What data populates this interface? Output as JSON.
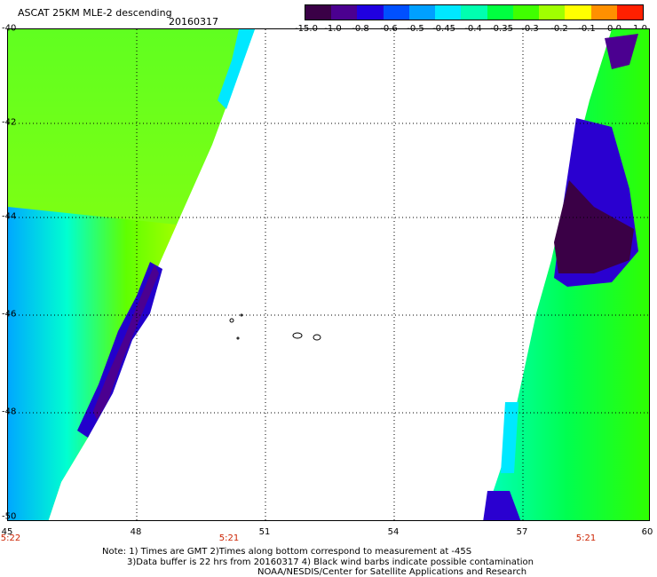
{
  "header": {
    "title": "ASCAT 25KM MLE-2 descending",
    "date": "20160317"
  },
  "colorbar": {
    "colors": [
      "#3a0046",
      "#4b0090",
      "#2000e0",
      "#0050ff",
      "#00a0ff",
      "#00e8ff",
      "#00ffb0",
      "#00ff40",
      "#40ff00",
      "#a0ff00",
      "#ffff00",
      "#ff9000",
      "#ff2000"
    ],
    "ticks": [
      "-15.0",
      "-1.0",
      "-0.8",
      "-0.6",
      "-0.5",
      "-0.45",
      "-0.4",
      "-0.35",
      "-0.3",
      "-0.2",
      "-0.1",
      "0.0",
      "1.0"
    ]
  },
  "map": {
    "lon_ticks": [
      "45",
      "48",
      "51",
      "54",
      "57",
      "60"
    ],
    "lat_ticks": [
      "-40",
      "-42",
      "-44",
      "-46",
      "-48",
      "-50"
    ],
    "swath_times": [
      "5:22",
      "5:21",
      "5:21"
    ],
    "grid": true
  },
  "notes": {
    "line1": "Note: 1) Times are GMT 2)Times along bottom correspond to measurement at -45S",
    "line2": "3)Data buffer is 22 hrs from 20160317 4) Black wind barbs indicate possible contamination",
    "line3": "NOAA/NESDIS/Center for Satellite Applications and Research"
  }
}
